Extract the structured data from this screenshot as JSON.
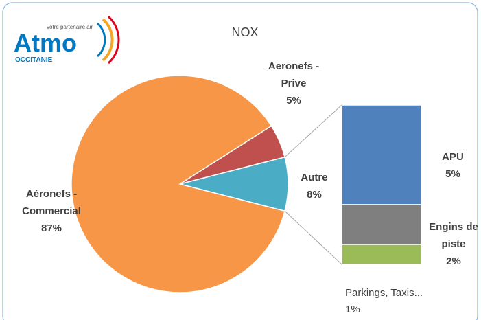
{
  "logo": {
    "brand": "Atmo",
    "tagline": "votre partenaire air",
    "region": "OCCITANIE"
  },
  "chart_data": {
    "type": "pie",
    "title": "NOX",
    "categories": [
      "Aéronefs - Commercial",
      "Aeronefs - Prive",
      "Autre"
    ],
    "values": [
      87,
      5,
      8
    ],
    "value_labels": [
      "87%",
      "5%",
      "8%"
    ],
    "colors": [
      "#f79646",
      "#c0504d",
      "#4bacc6"
    ],
    "breakdown": {
      "type": "bar",
      "categories": [
        "APU",
        "Engins de piste",
        "Parkings, Taxis..."
      ],
      "values": [
        5,
        2,
        1
      ],
      "value_labels": [
        "5%",
        "2%",
        "1%"
      ],
      "colors": [
        "#4f81bd",
        "#7f7f7f",
        "#9bbb59"
      ]
    }
  }
}
